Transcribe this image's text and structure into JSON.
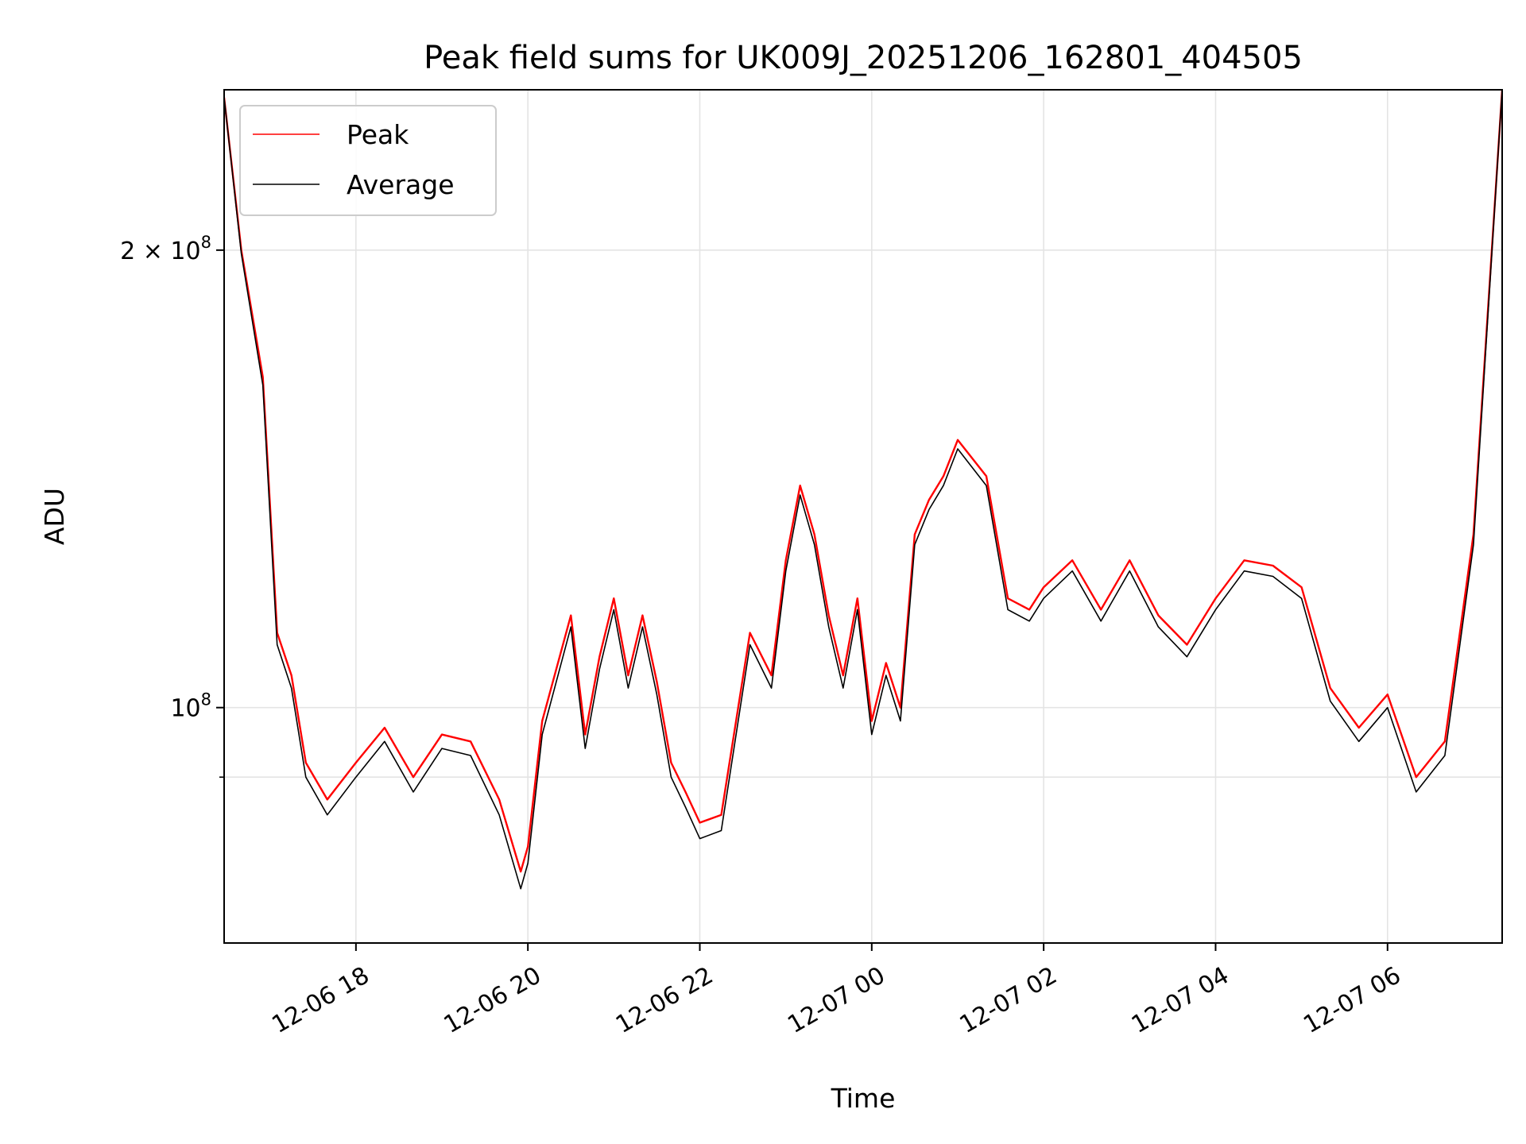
{
  "chart_data": {
    "type": "line",
    "title": "Peak field sums for UK009J_20251206_162801_404505",
    "xlabel": "Time",
    "ylabel": "ADU",
    "yscale": "log",
    "grid": true,
    "legend_position": "top-left",
    "xlim": [
      "2025-12-06 16:28",
      "2025-12-07 07:20"
    ],
    "ylim": [
      70000000,
      255000000
    ],
    "x_ticks": [
      "12-06 18",
      "12-06 20",
      "12-06 22",
      "12-07 00",
      "12-07 02",
      "12-07 04",
      "12-07 06"
    ],
    "x_tick_times": [
      "2025-12-06 18:00",
      "2025-12-06 20:00",
      "2025-12-06 22:00",
      "2025-12-07 00:00",
      "2025-12-07 02:00",
      "2025-12-07 04:00",
      "2025-12-07 06:00"
    ],
    "y_ticks_major": [
      {
        "value": 100000000,
        "base": "10",
        "exp": "8",
        "coef": ""
      },
      {
        "value": 200000000,
        "base": "10",
        "exp": "8",
        "coef": "2 × "
      }
    ],
    "y_ticks_minor": [
      90000000
    ],
    "x": [
      "2025-12-06 16:28",
      "2025-12-06 16:40",
      "2025-12-06 16:55",
      "2025-12-06 17:05",
      "2025-12-06 17:15",
      "2025-12-06 17:25",
      "2025-12-06 17:40",
      "2025-12-06 18:00",
      "2025-12-06 18:20",
      "2025-12-06 18:40",
      "2025-12-06 19:00",
      "2025-12-06 19:20",
      "2025-12-06 19:40",
      "2025-12-06 19:55",
      "2025-12-06 20:00",
      "2025-12-06 20:10",
      "2025-12-06 20:30",
      "2025-12-06 20:40",
      "2025-12-06 20:50",
      "2025-12-06 21:00",
      "2025-12-06 21:10",
      "2025-12-06 21:20",
      "2025-12-06 21:30",
      "2025-12-06 21:40",
      "2025-12-06 21:50",
      "2025-12-06 22:00",
      "2025-12-06 22:15",
      "2025-12-06 22:35",
      "2025-12-06 22:50",
      "2025-12-06 23:00",
      "2025-12-06 23:10",
      "2025-12-06 23:20",
      "2025-12-06 23:30",
      "2025-12-06 23:40",
      "2025-12-06 23:50",
      "2025-12-07 00:00",
      "2025-12-07 00:10",
      "2025-12-07 00:20",
      "2025-12-07 00:30",
      "2025-12-07 00:40",
      "2025-12-07 00:50",
      "2025-12-07 01:00",
      "2025-12-07 01:20",
      "2025-12-07 01:35",
      "2025-12-07 01:50",
      "2025-12-07 02:00",
      "2025-12-07 02:20",
      "2025-12-07 02:40",
      "2025-12-07 03:00",
      "2025-12-07 03:20",
      "2025-12-07 03:40",
      "2025-12-07 04:00",
      "2025-12-07 04:20",
      "2025-12-07 04:40",
      "2025-12-07 05:00",
      "2025-12-07 05:20",
      "2025-12-07 05:40",
      "2025-12-07 06:00",
      "2025-12-07 06:20",
      "2025-12-07 06:40",
      "2025-12-07 07:00",
      "2025-12-07 07:20"
    ],
    "series": [
      {
        "name": "Peak",
        "color": "#ff0000",
        "values": [
          252000000,
          200000000,
          165000000,
          112000000,
          105000000,
          92000000,
          87000000,
          92000000,
          97000000,
          90000000,
          96000000,
          95000000,
          87000000,
          78000000,
          81000000,
          98000000,
          115000000,
          96000000,
          108000000,
          118000000,
          105000000,
          115000000,
          104000000,
          92000000,
          88000000,
          84000000,
          85000000,
          112000000,
          105000000,
          125000000,
          140000000,
          130000000,
          115000000,
          105000000,
          118000000,
          98000000,
          107000000,
          100000000,
          130000000,
          137000000,
          142000000,
          150000000,
          142000000,
          118000000,
          116000000,
          120000000,
          125000000,
          116000000,
          125000000,
          115000000,
          110000000,
          118000000,
          125000000,
          124000000,
          120000000,
          103000000,
          97000000,
          102000000,
          90000000,
          95000000,
          130000000,
          255000000
        ]
      },
      {
        "name": "Average",
        "color": "#000000",
        "values": [
          252000000,
          199000000,
          163000000,
          110000000,
          103000000,
          90000000,
          85000000,
          90000000,
          95000000,
          88000000,
          94000000,
          93000000,
          85000000,
          76000000,
          79000000,
          96000000,
          113000000,
          94000000,
          106000000,
          116000000,
          103000000,
          113000000,
          102000000,
          90000000,
          86000000,
          82000000,
          83000000,
          110000000,
          103000000,
          123000000,
          138000000,
          128000000,
          113000000,
          103000000,
          116000000,
          96000000,
          105000000,
          98000000,
          128000000,
          135000000,
          140000000,
          148000000,
          140000000,
          116000000,
          114000000,
          118000000,
          123000000,
          114000000,
          123000000,
          113000000,
          108000000,
          116000000,
          123000000,
          122000000,
          118000000,
          101000000,
          95000000,
          100000000,
          88000000,
          93000000,
          128000000,
          255000000
        ]
      }
    ]
  }
}
